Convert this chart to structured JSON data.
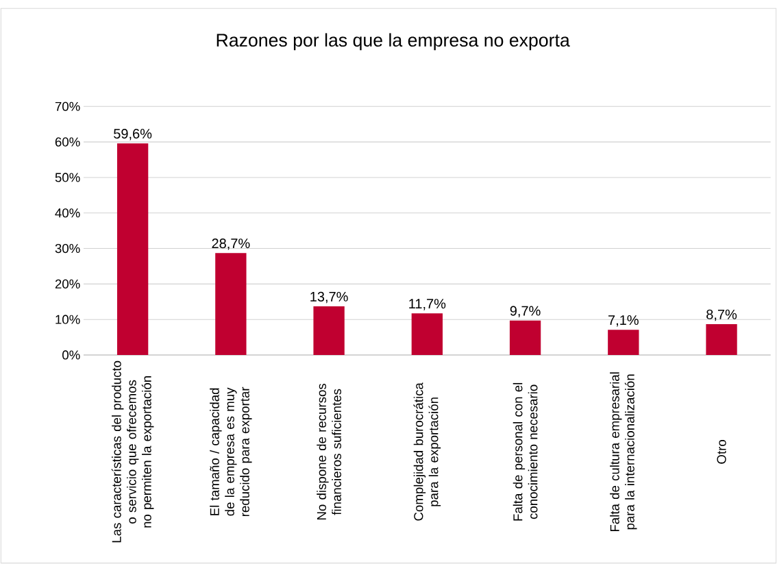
{
  "chart_data": {
    "type": "bar",
    "title": "Razones por las que la empresa no exporta",
    "categories": [
      "Las características del producto o servicio que ofrecemos no permiten la exportación",
      "El tamaño / capacidad de la empresa es muy reducido para exportar",
      "No dispone de recursos financieros suficientes",
      "Complejidad burocrática para la exportación",
      "Falta de personal con el conocimiento necesario",
      "Falta de cultura empresarial para la internacionalización",
      "Otro"
    ],
    "values": [
      59.6,
      28.7,
      13.7,
      11.7,
      9.7,
      7.1,
      8.7
    ],
    "value_labels": [
      "59,6%",
      "28,7%",
      "13,7%",
      "11,7%",
      "9,7%",
      "7,1%",
      "8,7%"
    ],
    "color": "#c00030",
    "ylim": [
      0,
      70
    ],
    "yticks": [
      {
        "value": 0,
        "label": "0%"
      },
      {
        "value": 10,
        "label": "10%"
      },
      {
        "value": 20,
        "label": "20%"
      },
      {
        "value": 30,
        "label": "30%"
      },
      {
        "value": 40,
        "label": "40%"
      },
      {
        "value": 50,
        "label": "50%"
      },
      {
        "value": 60,
        "label": "60%"
      },
      {
        "value": 70,
        "label": "70%"
      }
    ],
    "grid": "y"
  }
}
